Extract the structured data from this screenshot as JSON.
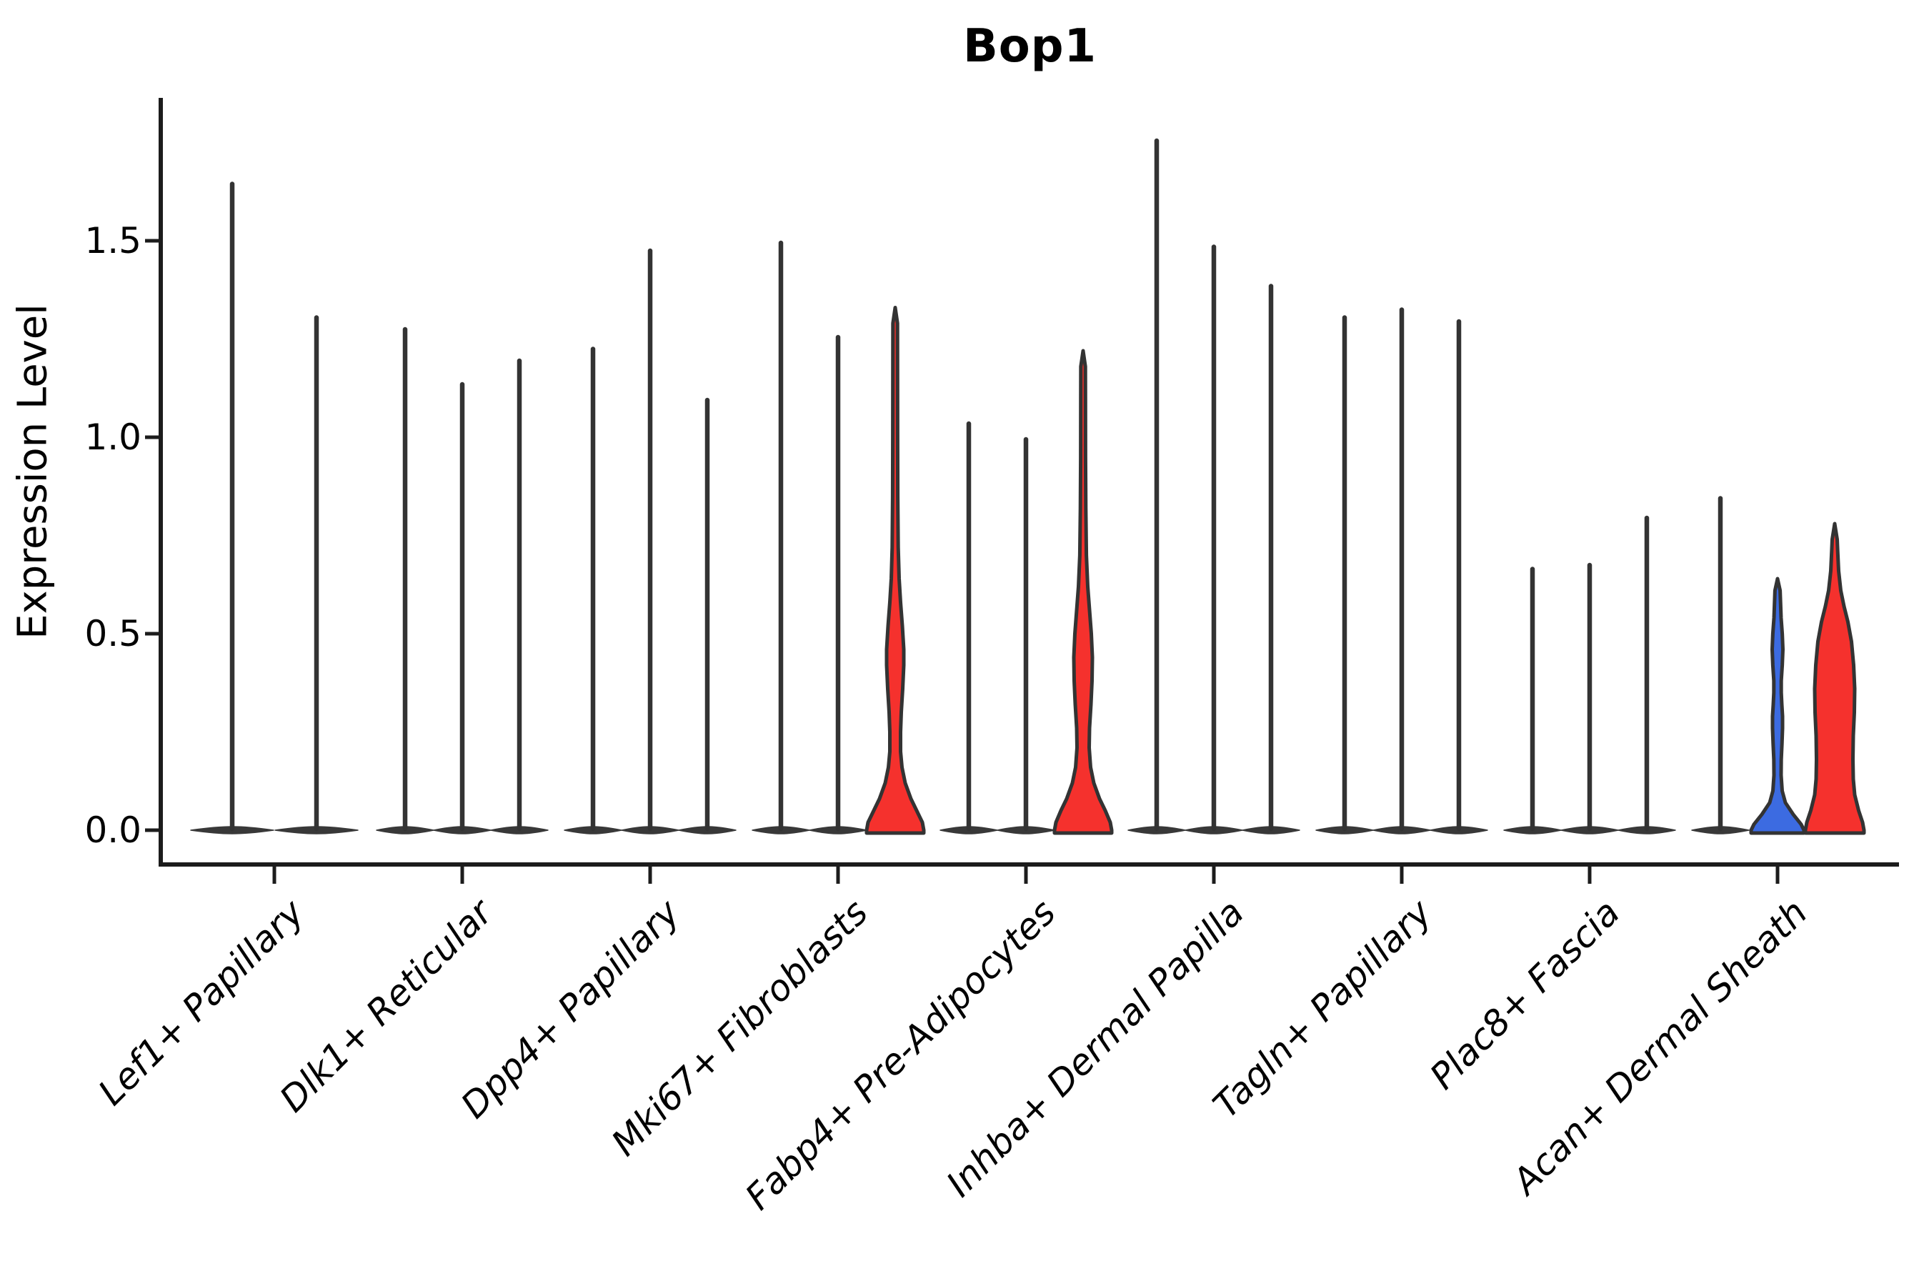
{
  "chart_data": {
    "type": "violin",
    "title": "Bop1",
    "ylabel": "Expression Level",
    "yticks": [
      0.0,
      0.5,
      1.0,
      1.5
    ],
    "ylim": [
      0,
      1.86
    ],
    "legend_position": "none",
    "grid": false,
    "colors": {
      "red_fill": "#f5312d",
      "blue_fill": "#3c6be1",
      "violin_stroke": "#333333",
      "thin_base_fill": "#383838",
      "spine_color": "#1c1c1c"
    },
    "categories": [
      "Lef1+ Papillary",
      "Dlk1+ Reticular",
      "Dpp4+ Papillary",
      "Mki67+ Fibroblasts",
      "Fabp4+ Pre-Adipocytes",
      "Inhba+ Dermal Papilla",
      "Tagln+ Papillary",
      "Plac8+ Fascia",
      "Acan+ Dermal Sheath"
    ],
    "groups": [
      {
        "category": "Lef1+ Papillary",
        "violins": [
          {
            "dx": -59,
            "max": 1.65,
            "style": "thin",
            "base_hw": 58
          },
          {
            "dx": 59,
            "max": 1.31,
            "style": "thin",
            "base_hw": 58
          }
        ]
      },
      {
        "category": "Dlk1+ Reticular",
        "violins": [
          {
            "dx": -80,
            "max": 1.28,
            "style": "thin",
            "base_hw": 40
          },
          {
            "dx": 0,
            "max": 1.14,
            "style": "thin",
            "base_hw": 40
          },
          {
            "dx": 80,
            "max": 1.2,
            "style": "thin",
            "base_hw": 40
          }
        ]
      },
      {
        "category": "Dpp4+ Papillary",
        "violins": [
          {
            "dx": -80,
            "max": 1.23,
            "style": "thin",
            "base_hw": 40
          },
          {
            "dx": 0,
            "max": 1.48,
            "style": "thin",
            "base_hw": 40
          },
          {
            "dx": 80,
            "max": 1.1,
            "style": "thin",
            "base_hw": 40
          }
        ]
      },
      {
        "category": "Mki67+ Fibroblasts",
        "violins": [
          {
            "dx": -80,
            "max": 1.5,
            "style": "thin",
            "base_hw": 40
          },
          {
            "dx": 0,
            "max": 1.26,
            "style": "thin",
            "base_hw": 40
          },
          {
            "dx": 80,
            "max": 1.33,
            "style": "red",
            "base_hw": 40,
            "profile": [
              [
                0,
                40
              ],
              [
                0.02,
                38
              ],
              [
                0.05,
                30
              ],
              [
                0.08,
                22
              ],
              [
                0.12,
                14
              ],
              [
                0.16,
                9.5
              ],
              [
                0.2,
                7.5
              ],
              [
                0.25,
                7.5
              ],
              [
                0.3,
                8.5
              ],
              [
                0.36,
                10.5
              ],
              [
                0.42,
                12
              ],
              [
                0.46,
                12
              ],
              [
                0.52,
                10
              ],
              [
                0.58,
                7.5
              ],
              [
                0.64,
                5.5
              ],
              [
                0.72,
                4.2
              ],
              [
                0.85,
                3.6
              ],
              [
                1.0,
                3.4
              ],
              [
                1.15,
                3.3
              ],
              [
                1.29,
                3.2
              ],
              [
                1.33,
                0
              ]
            ]
          }
        ]
      },
      {
        "category": "Fabp4+ Pre-Adipocytes",
        "violins": [
          {
            "dx": -80,
            "max": 1.04,
            "style": "thin",
            "base_hw": 40
          },
          {
            "dx": 0,
            "max": 1.0,
            "style": "thin",
            "base_hw": 40
          },
          {
            "dx": 80,
            "max": 1.22,
            "style": "red",
            "base_hw": 40,
            "profile": [
              [
                0,
                40
              ],
              [
                0.02,
                38
              ],
              [
                0.05,
                31
              ],
              [
                0.08,
                23
              ],
              [
                0.12,
                15
              ],
              [
                0.16,
                10.5
              ],
              [
                0.21,
                8.5
              ],
              [
                0.26,
                9
              ],
              [
                0.32,
                11
              ],
              [
                0.38,
                12.5
              ],
              [
                0.44,
                13
              ],
              [
                0.5,
                11.5
              ],
              [
                0.56,
                9
              ],
              [
                0.62,
                6.5
              ],
              [
                0.7,
                4.6
              ],
              [
                0.82,
                3.8
              ],
              [
                0.95,
                3.4
              ],
              [
                1.1,
                3.3
              ],
              [
                1.18,
                3.2
              ],
              [
                1.22,
                0
              ]
            ]
          }
        ]
      },
      {
        "category": "Inhba+ Dermal Papilla",
        "violins": [
          {
            "dx": -80,
            "max": 1.76,
            "style": "thin",
            "base_hw": 40
          },
          {
            "dx": 0,
            "max": 1.49,
            "style": "thin",
            "base_hw": 40
          },
          {
            "dx": 80,
            "max": 1.39,
            "style": "thin",
            "base_hw": 40
          }
        ]
      },
      {
        "category": "Tagln+ Papillary",
        "violins": [
          {
            "dx": -80,
            "max": 1.31,
            "style": "thin",
            "base_hw": 40
          },
          {
            "dx": 0,
            "max": 1.33,
            "style": "thin",
            "base_hw": 40
          },
          {
            "dx": 80,
            "max": 1.3,
            "style": "thin",
            "base_hw": 40
          }
        ]
      },
      {
        "category": "Plac8+ Fascia",
        "violins": [
          {
            "dx": -80,
            "max": 0.67,
            "style": "thin",
            "base_hw": 40
          },
          {
            "dx": 0,
            "max": 0.68,
            "style": "thin",
            "base_hw": 40
          },
          {
            "dx": 80,
            "max": 0.8,
            "style": "thin",
            "base_hw": 40
          }
        ]
      },
      {
        "category": "Acan+ Dermal Sheath",
        "violins": [
          {
            "dx": -80,
            "max": 0.85,
            "style": "thin",
            "base_hw": 40
          },
          {
            "dx": 0,
            "max": 0.64,
            "style": "blue",
            "base_hw": 37,
            "profile": [
              [
                0,
                37
              ],
              [
                0.015,
                33
              ],
              [
                0.04,
                22
              ],
              [
                0.07,
                11
              ],
              [
                0.1,
                6.5
              ],
              [
                0.14,
                5
              ],
              [
                0.18,
                5.2
              ],
              [
                0.22,
                6.2
              ],
              [
                0.26,
                7
              ],
              [
                0.29,
                7
              ],
              [
                0.32,
                6
              ],
              [
                0.35,
                5.2
              ],
              [
                0.38,
                5.2
              ],
              [
                0.42,
                6.6
              ],
              [
                0.46,
                7.5
              ],
              [
                0.5,
                6.6
              ],
              [
                0.54,
                5
              ],
              [
                0.58,
                4.2
              ],
              [
                0.61,
                3.6
              ],
              [
                0.64,
                0
              ]
            ]
          },
          {
            "dx": 80,
            "max": 0.78,
            "style": "red",
            "base_hw": 41,
            "profile": [
              [
                0,
                41
              ],
              [
                0.02,
                39
              ],
              [
                0.05,
                33.5
              ],
              [
                0.09,
                28
              ],
              [
                0.13,
                26
              ],
              [
                0.18,
                25.5
              ],
              [
                0.24,
                26
              ],
              [
                0.3,
                27.5
              ],
              [
                0.36,
                28
              ],
              [
                0.42,
                26.5
              ],
              [
                0.48,
                23.5
              ],
              [
                0.53,
                18.5
              ],
              [
                0.57,
                13
              ],
              [
                0.61,
                8.5
              ],
              [
                0.66,
                5.5
              ],
              [
                0.71,
                4.2
              ],
              [
                0.74,
                3.5
              ],
              [
                0.78,
                0
              ]
            ]
          }
        ]
      }
    ]
  }
}
